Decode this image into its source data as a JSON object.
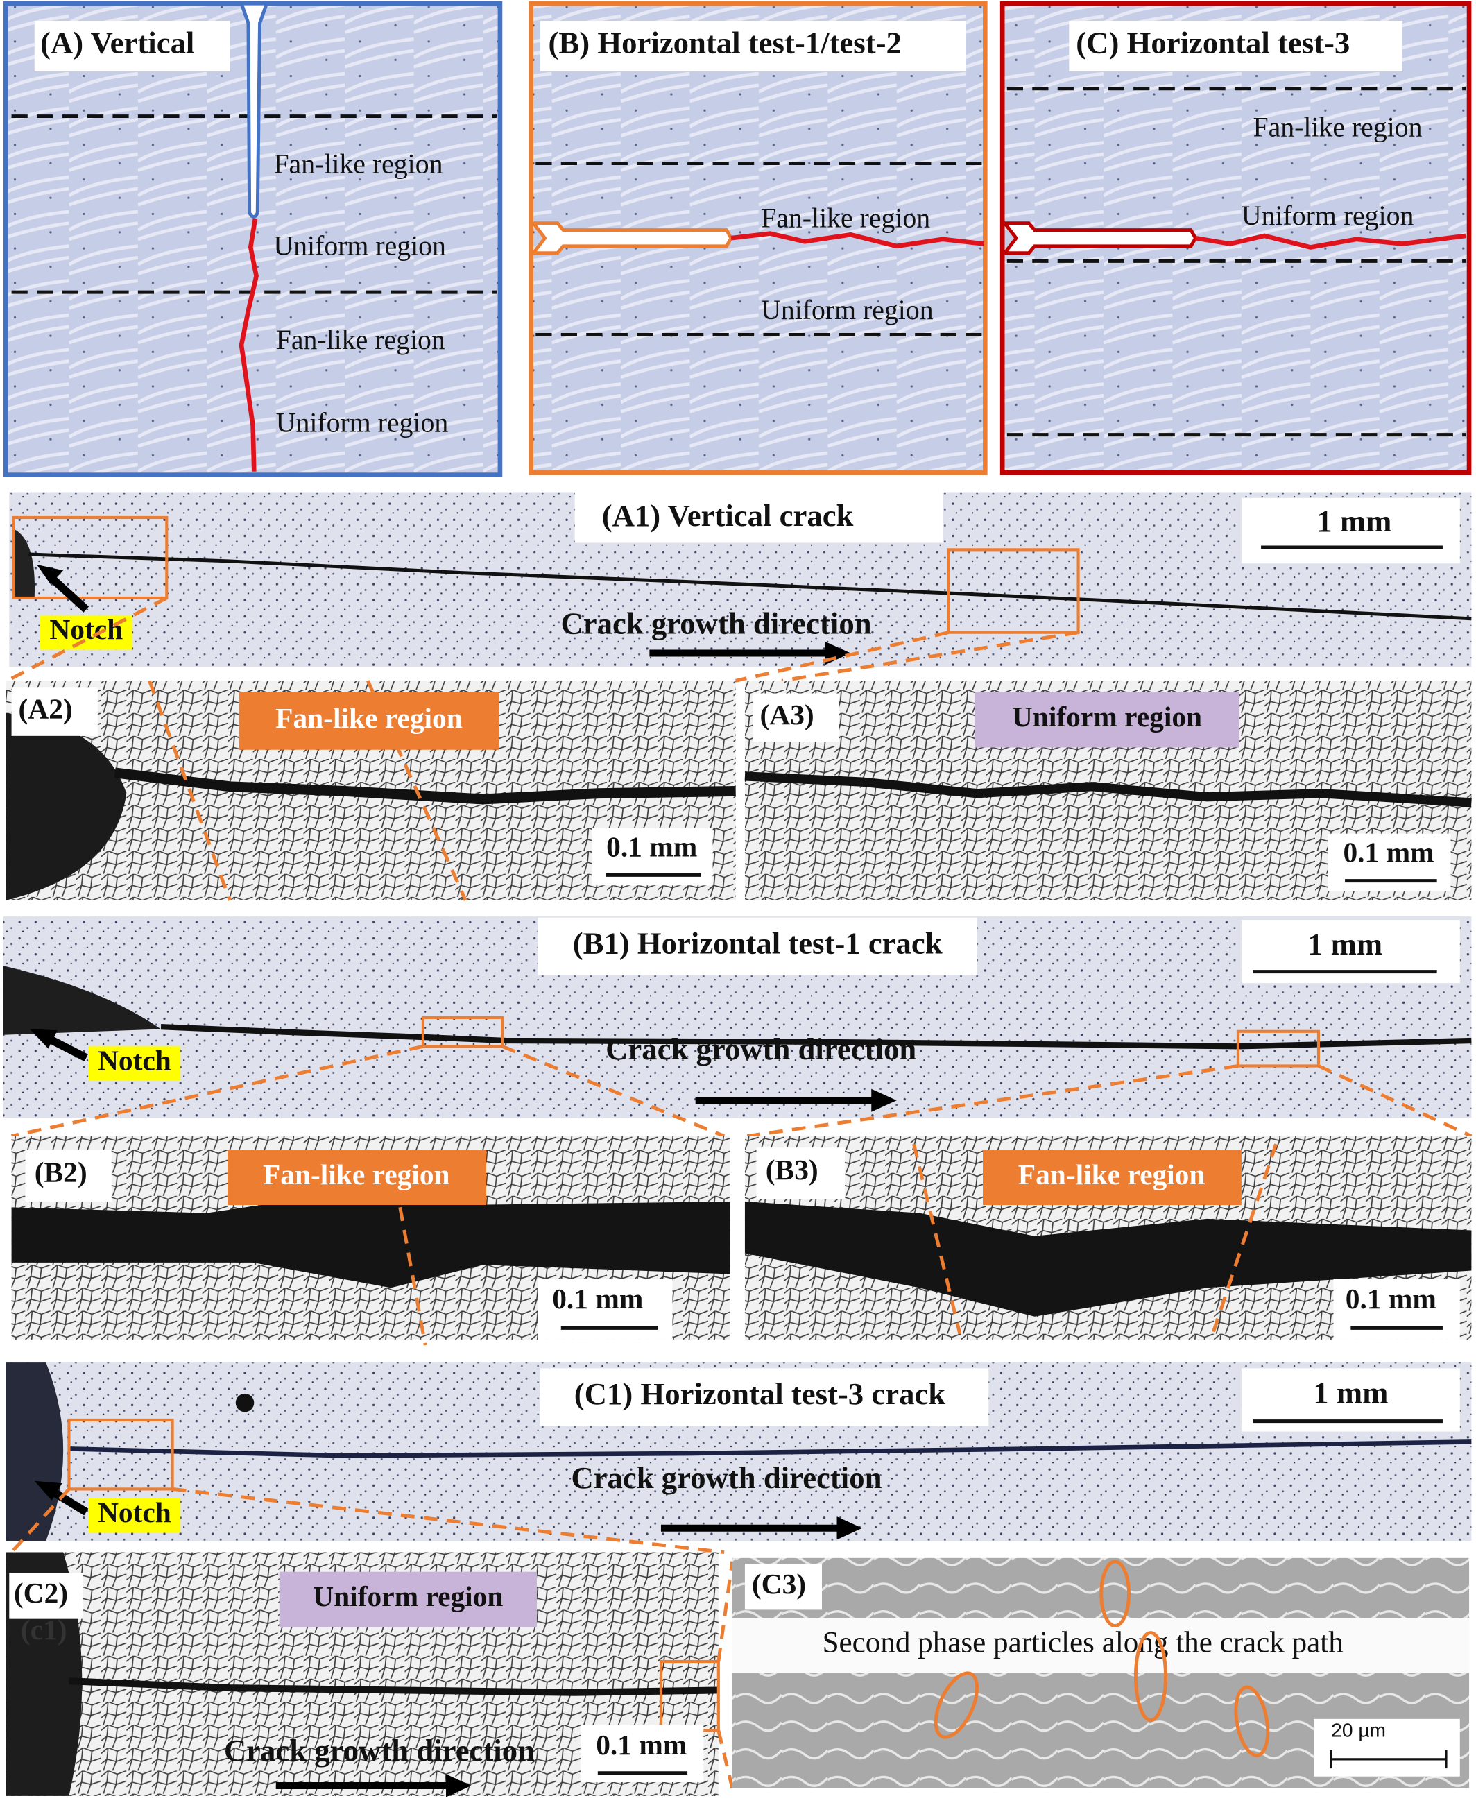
{
  "panel_a": {
    "label": "(A) Vertical",
    "regions": [
      "Fan-like region",
      "Uniform region",
      "Fan-like region",
      "Uniform region"
    ]
  },
  "panel_b": {
    "label": "(B)  Horizontal test-1/test-2",
    "regions": [
      "Fan-like region",
      "Uniform region"
    ]
  },
  "panel_c": {
    "label": "(C) Horizontal test-3",
    "regions": [
      "Fan-like region",
      "Uniform region"
    ]
  },
  "panel_a1": {
    "label": "(A1) Vertical crack",
    "scale_bar": "1 mm",
    "notch": "Notch",
    "direction": "Crack growth direction"
  },
  "panel_a2": {
    "label": "(A2)",
    "region": "Fan-like region",
    "scale_bar": "0.1 mm"
  },
  "panel_a3": {
    "label": "(A3)",
    "region": "Uniform region",
    "scale_bar": "0.1 mm"
  },
  "panel_b1": {
    "label": "(B1) Horizontal test-1 crack",
    "scale_bar": "1 mm",
    "notch": "Notch",
    "direction": "Crack growth direction"
  },
  "panel_b2": {
    "label": "(B2)",
    "region": "Fan-like region",
    "scale_bar": "0.1 mm"
  },
  "panel_b3": {
    "label": "(B3)",
    "region": "Fan-like region",
    "scale_bar": "0.1 mm"
  },
  "panel_c1": {
    "label": "(C1) Horizontal test-3 crack",
    "scale_bar": "1 mm",
    "notch": "Notch",
    "direction": "Crack growth direction"
  },
  "panel_c2": {
    "label": "(C2)",
    "sublabel": "(c1)",
    "region": "Uniform region",
    "scale_bar": "0.1 mm",
    "direction": "Crack growth direction"
  },
  "panel_c3": {
    "label": "(C3)",
    "caption": "Second phase particles along the crack path",
    "scale_bar": "20 µm"
  }
}
